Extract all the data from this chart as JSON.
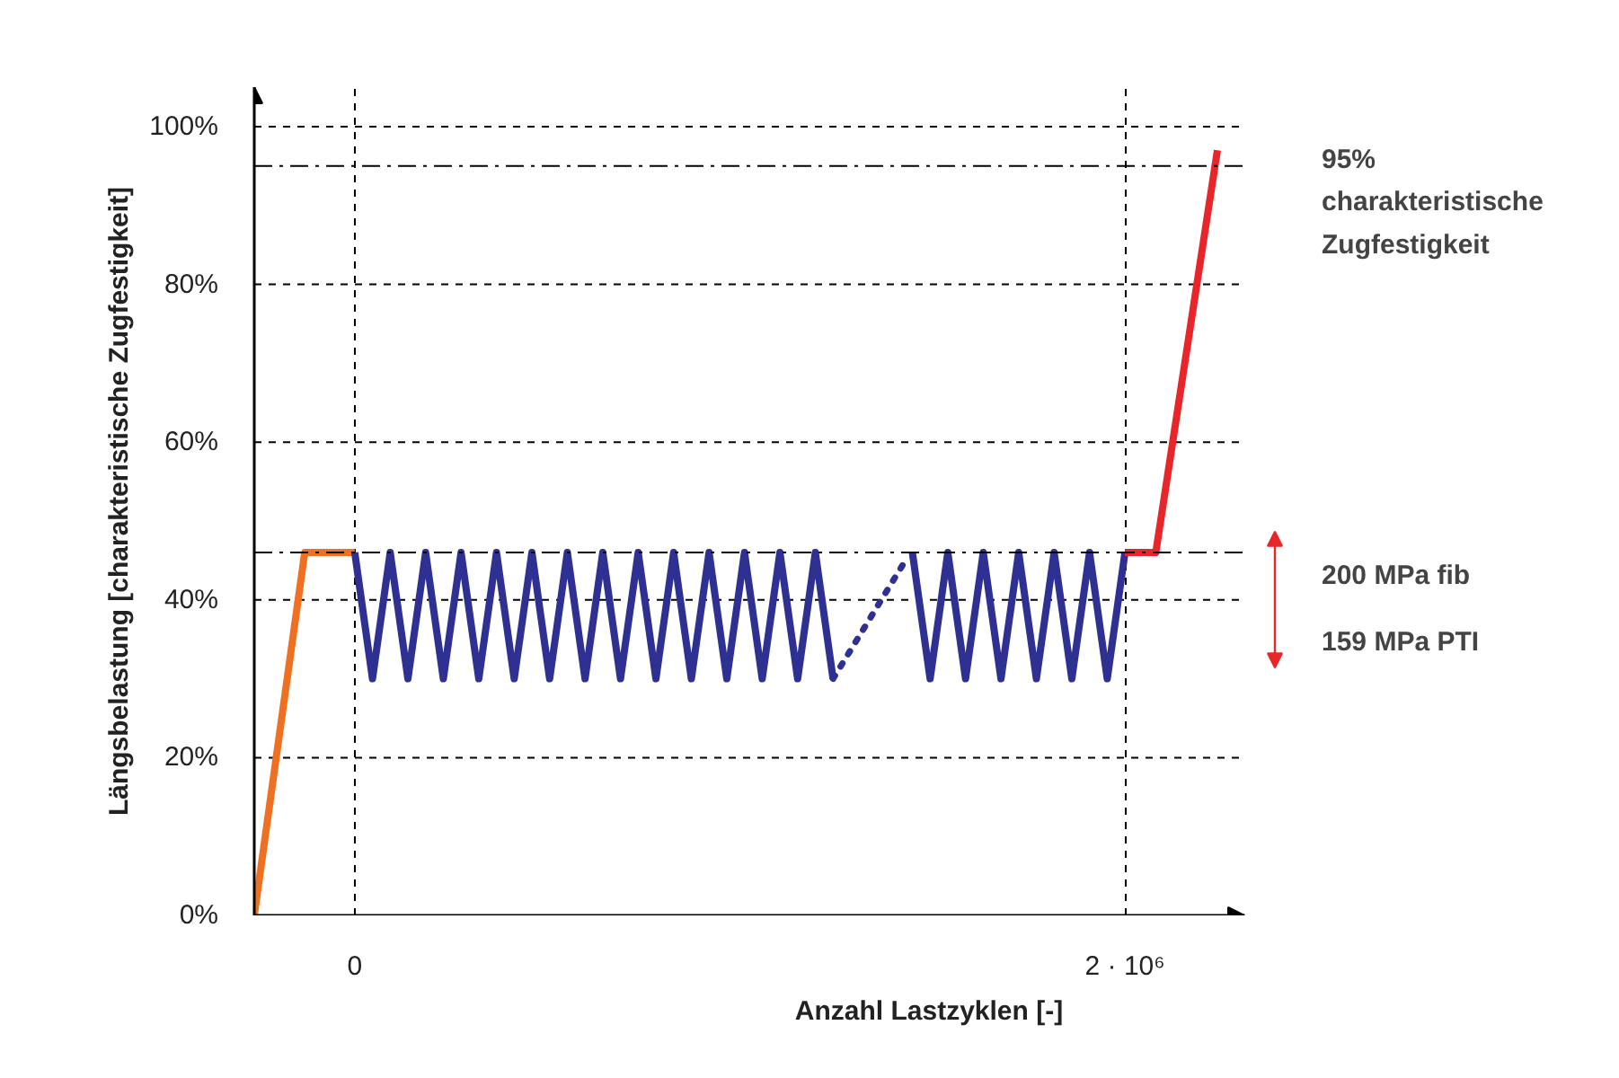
{
  "chart_data": {
    "type": "line",
    "xlabel": "Anzahl Lastzyklen [-]",
    "ylabel": "Längsbelastung [charakteristische Zugfestigkeit]",
    "xlim": [
      -261000,
      2310000
    ],
    "ylim": [
      0,
      105
    ],
    "xticks": [
      {
        "value": 0,
        "label": "0"
      },
      {
        "value": 2000000,
        "label": "2 · 10⁶"
      }
    ],
    "yticks": [
      {
        "value": 0,
        "label": "0%"
      },
      {
        "value": 20,
        "label": "20%"
      },
      {
        "value": 40,
        "label": "40%"
      },
      {
        "value": 60,
        "label": "60%"
      },
      {
        "value": 80,
        "label": "80%"
      },
      {
        "value": 100,
        "label": "100%"
      }
    ],
    "grid": true,
    "line_style": "solid",
    "series": [
      {
        "color": "#f07022",
        "x": [
          -261000,
          -130000,
          0
        ],
        "values": [
          0,
          46,
          46
        ]
      },
      {
        "color": "#2e3192",
        "x": [
          0,
          46000,
          92000,
          138000,
          184000,
          230000,
          276000,
          322000,
          368000,
          414000,
          460000,
          506000,
          552000,
          598000,
          644000,
          690000,
          736000,
          782000,
          828000,
          874000,
          920000,
          966000,
          1012000,
          1058000,
          1104000,
          1150000,
          1196000,
          1242000
        ],
        "values": [
          46,
          30,
          46,
          30,
          46,
          30,
          46,
          30,
          46,
          30,
          46,
          30,
          46,
          30,
          46,
          30,
          46,
          30,
          46,
          30,
          46,
          30,
          46,
          30,
          46,
          30,
          46,
          30
        ]
      },
      {
        "color": "#2e3192",
        "line_style": "dotted",
        "x": [
          1242000,
          1430000
        ],
        "values": [
          30,
          45
        ]
      },
      {
        "color": "#2e3192",
        "x": [
          1448000,
          1494000,
          1540000,
          1586000,
          1632000,
          1678000,
          1724000,
          1770000,
          1816000,
          1862000,
          1908000,
          1954000,
          2000000
        ],
        "values": [
          46,
          30,
          46,
          30,
          46,
          30,
          46,
          30,
          46,
          30,
          46,
          30,
          46
        ]
      },
      {
        "color": "#e8262a",
        "x": [
          2000000,
          2080000,
          2240000
        ],
        "values": [
          46,
          46,
          97
        ]
      }
    ],
    "ref_lines": [
      {
        "axis": "y",
        "value": 95,
        "label": "95%\ncharakteristische\nZugfestigkeit",
        "line_style": "dashdot"
      },
      {
        "axis": "y",
        "value": 46,
        "line_style": "dashdot"
      }
    ],
    "annotations": [
      "200 MPa fib",
      "159 MPa PTI"
    ]
  }
}
